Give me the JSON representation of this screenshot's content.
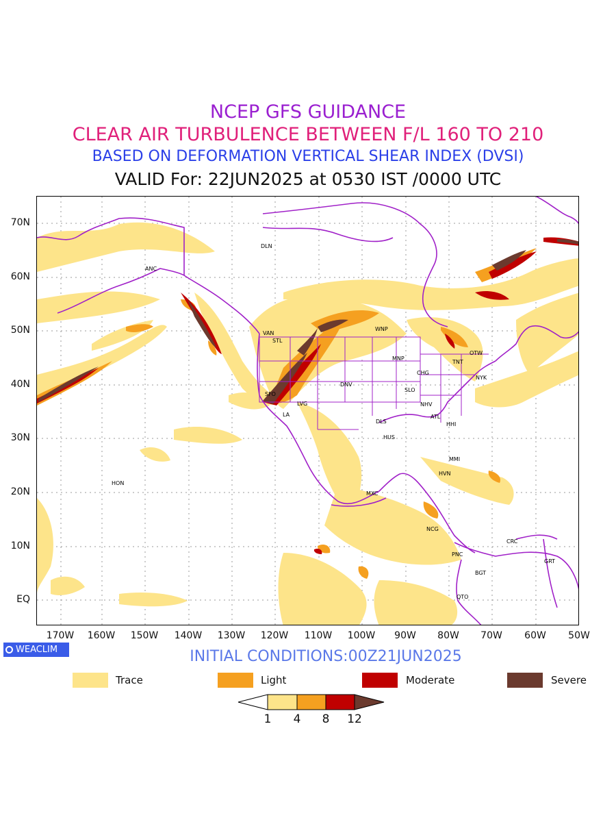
{
  "titles": {
    "line1": "NCEP GFS GUIDANCE",
    "line2": "CLEAR AIR TURBULENCE BETWEEN F/L 160 TO 210",
    "line3": "BASED ON DEFORMATION VERTICAL SHEAR INDEX (DVSI)",
    "line4": "VALID For: 22JUN2025 at 0530 IST /0000 UTC"
  },
  "colors": {
    "title1": "#9a1fd0",
    "title2": "#e0207a",
    "title3": "#2a3fe8",
    "borders": "#a020c8",
    "trace": "#fde48a",
    "light": "#f5a020",
    "moderate": "#c00000",
    "severe": "#6b3a2e"
  },
  "axes": {
    "lat_labels": [
      "70N",
      "60N",
      "50N",
      "40N",
      "30N",
      "20N",
      "10N",
      "EQ"
    ],
    "lon_labels": [
      "170W",
      "160W",
      "150W",
      "140W",
      "130W",
      "120W",
      "110W",
      "100W",
      "90W",
      "80W",
      "70W",
      "60W",
      "50W"
    ]
  },
  "cities": [
    "DLN",
    "ANC",
    "VAN",
    "STL",
    "WNP",
    "MNP",
    "OTW",
    "TNT",
    "CHG",
    "NYK",
    "DNV",
    "SFO",
    "LVG",
    "LA",
    "SLO",
    "NHV",
    "ATL",
    "DLS",
    "HHI",
    "HUS",
    "MMI",
    "HVN",
    "HON",
    "MXC",
    "NCG",
    "PNC",
    "CRC",
    "GRT",
    "BGT",
    "QTO"
  ],
  "logo": {
    "label": "WEACLIM",
    "icon": "ring-icon"
  },
  "initial_conditions": "INITIAL CONDITIONS:00Z21JUN2025",
  "legend": [
    {
      "label": "Trace",
      "color": "#fde48a"
    },
    {
      "label": "Light",
      "color": "#f5a020"
    },
    {
      "label": "Moderate",
      "color": "#c00000"
    },
    {
      "label": "Severe",
      "color": "#6b3a2e"
    }
  ],
  "colorbar": {
    "levels": [
      "1",
      "4",
      "8",
      "12"
    ],
    "colors": [
      "#fde48a",
      "#f5a020",
      "#c00000",
      "#6b3a2e"
    ]
  }
}
